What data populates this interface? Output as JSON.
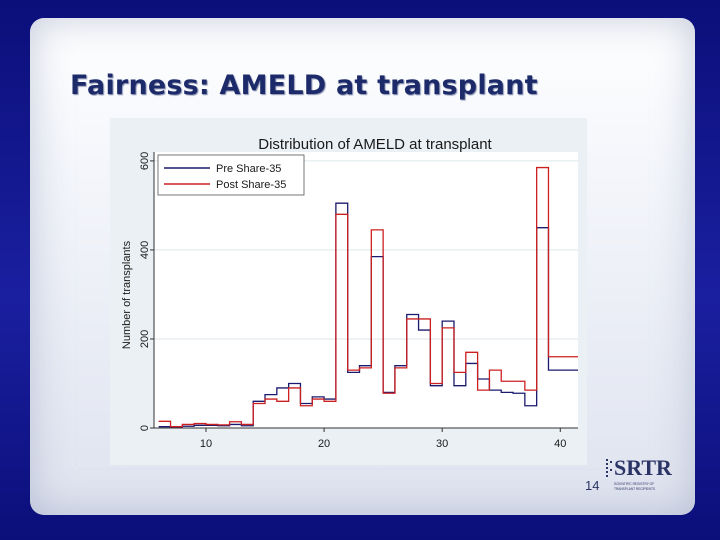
{
  "slide": {
    "title": "Fairness: AMELD at transplant",
    "page_number": "14"
  },
  "logo": {
    "text": "SRTR",
    "subtext": "SCIENTIFIC REGISTRY OF TRANSPLANT RECIPIENTS"
  },
  "colors": {
    "pre_series": "#1a1a6e",
    "post_series": "#cc2020",
    "plot_bg": "#ffffff",
    "panel_bg": "#eaf0f4"
  },
  "chart_data": {
    "type": "line",
    "step": true,
    "title": "Distribution of AMELD at transplant",
    "xlabel": "",
    "ylabel": "Number of transplants",
    "xlim": [
      5.6,
      41.5
    ],
    "ylim": [
      0,
      620
    ],
    "xticks": [
      10,
      20,
      30,
      40
    ],
    "yticks": [
      0,
      200,
      400,
      600
    ],
    "grid": true,
    "legend_position": "top-left",
    "x": [
      6,
      7,
      8,
      9,
      10,
      11,
      12,
      13,
      14,
      15,
      16,
      17,
      18,
      19,
      20,
      21,
      22,
      23,
      24,
      25,
      26,
      27,
      28,
      29,
      30,
      31,
      32,
      33,
      34,
      35,
      36,
      37,
      38,
      39,
      40,
      41
    ],
    "series": [
      {
        "name": "Pre Share-35",
        "values": [
          3,
          2,
          4,
          6,
          6,
          5,
          8,
          5,
          60,
          75,
          90,
          100,
          55,
          70,
          65,
          505,
          125,
          140,
          385,
          80,
          140,
          255,
          220,
          95,
          240,
          95,
          145,
          110,
          85,
          80,
          78,
          50,
          450,
          130,
          130,
          130
        ]
      },
      {
        "name": "Post Share-35",
        "values": [
          15,
          3,
          8,
          10,
          8,
          7,
          14,
          8,
          55,
          65,
          60,
          90,
          50,
          65,
          60,
          480,
          130,
          135,
          445,
          78,
          135,
          245,
          245,
          100,
          225,
          125,
          170,
          85,
          130,
          105,
          105,
          85,
          585,
          160,
          160,
          160
        ]
      }
    ]
  }
}
